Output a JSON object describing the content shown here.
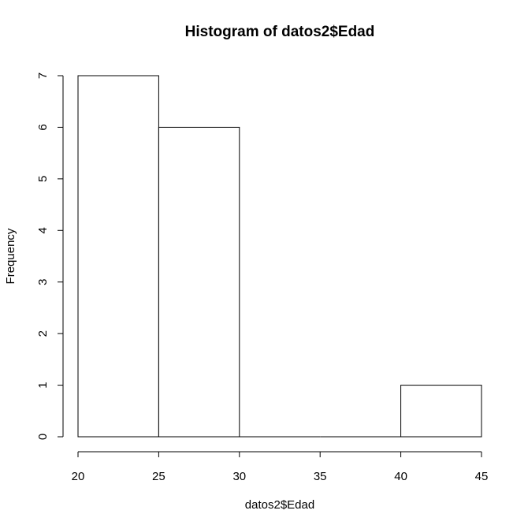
{
  "chart_data": {
    "type": "bar",
    "title": "Histogram of datos2$Edad",
    "xlabel": "datos2$Edad",
    "ylabel": "Frequency",
    "bins": [
      {
        "from": 20,
        "to": 25,
        "count": 7
      },
      {
        "from": 25,
        "to": 30,
        "count": 6
      },
      {
        "from": 30,
        "to": 35,
        "count": 0
      },
      {
        "from": 35,
        "to": 40,
        "count": 0
      },
      {
        "from": 40,
        "to": 45,
        "count": 1
      }
    ],
    "xlim": [
      20,
      45
    ],
    "ylim": [
      0,
      7
    ],
    "xticks": [
      "20",
      "25",
      "30",
      "35",
      "40",
      "45"
    ],
    "yticks": [
      "0",
      "1",
      "2",
      "3",
      "4",
      "5",
      "6",
      "7"
    ],
    "grid": false,
    "colors": {
      "bar_fill": "#ffffff",
      "bar_stroke": "#000000"
    }
  }
}
